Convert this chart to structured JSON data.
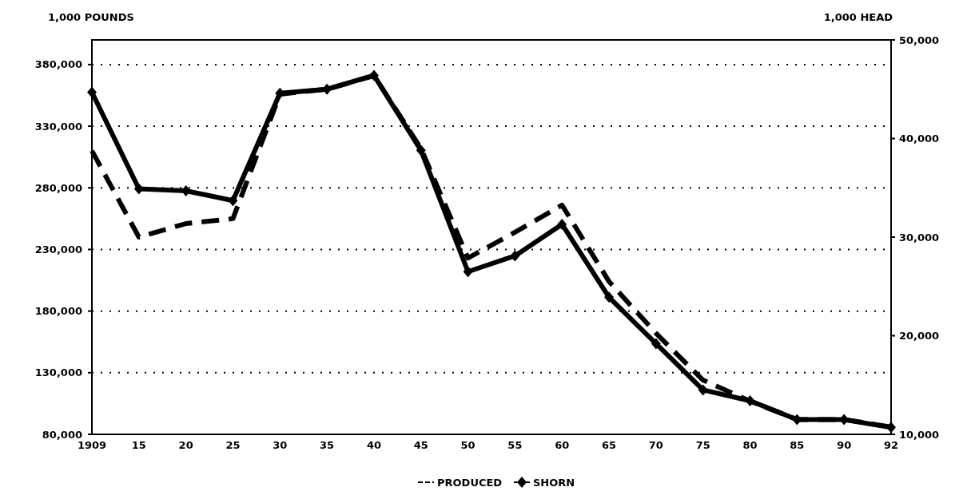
{
  "chart_data": {
    "type": "line",
    "ylabel": "1,000 POUNDS",
    "y2label": "1,000 HEAD",
    "categories": [
      "1909",
      "15",
      "20",
      "25",
      "30",
      "35",
      "40",
      "45",
      "50",
      "55",
      "60",
      "65",
      "70",
      "75",
      "80",
      "85",
      "90",
      "92"
    ],
    "series": [
      {
        "name": "PRODUCED",
        "color": "#000000",
        "line_style": "dashed",
        "marker": "none",
        "values": [
          310000,
          240000,
          251000,
          255000,
          356000,
          360000,
          371000,
          312000,
          223000,
          244000,
          266000,
          204000,
          162000,
          124000,
          107000,
          92000,
          92000,
          86000
        ]
      },
      {
        "name": "SHORN",
        "color": "#000000",
        "line_style": "solid",
        "marker": "diamond",
        "axis": "y2",
        "values": [
          44700,
          34900,
          34700,
          33700,
          44600,
          45000,
          46400,
          38800,
          26500,
          28100,
          31300,
          23900,
          19200,
          14500,
          13400,
          11500,
          11500,
          10700
        ]
      }
    ],
    "ylim": [
      80000,
      400000
    ],
    "yticks": [
      {
        "value": 80000,
        "label": "80,000"
      },
      {
        "value": 130000,
        "label": "130,000"
      },
      {
        "value": 180000,
        "label": "180,000"
      },
      {
        "value": 230000,
        "label": "230,000"
      },
      {
        "value": 280000,
        "label": "280,000"
      },
      {
        "value": 330000,
        "label": "330,000"
      },
      {
        "value": 380000,
        "label": "380,000"
      }
    ],
    "y2lim": [
      10000,
      50000
    ],
    "y2ticks": [
      {
        "value": 10000,
        "label": "10,000"
      },
      {
        "value": 20000,
        "label": "20,000"
      },
      {
        "value": 30000,
        "label": "30,000"
      },
      {
        "value": 40000,
        "label": "40,000"
      },
      {
        "value": 50000,
        "label": "50,000"
      }
    ],
    "grid": "y",
    "legend": "bottom"
  }
}
